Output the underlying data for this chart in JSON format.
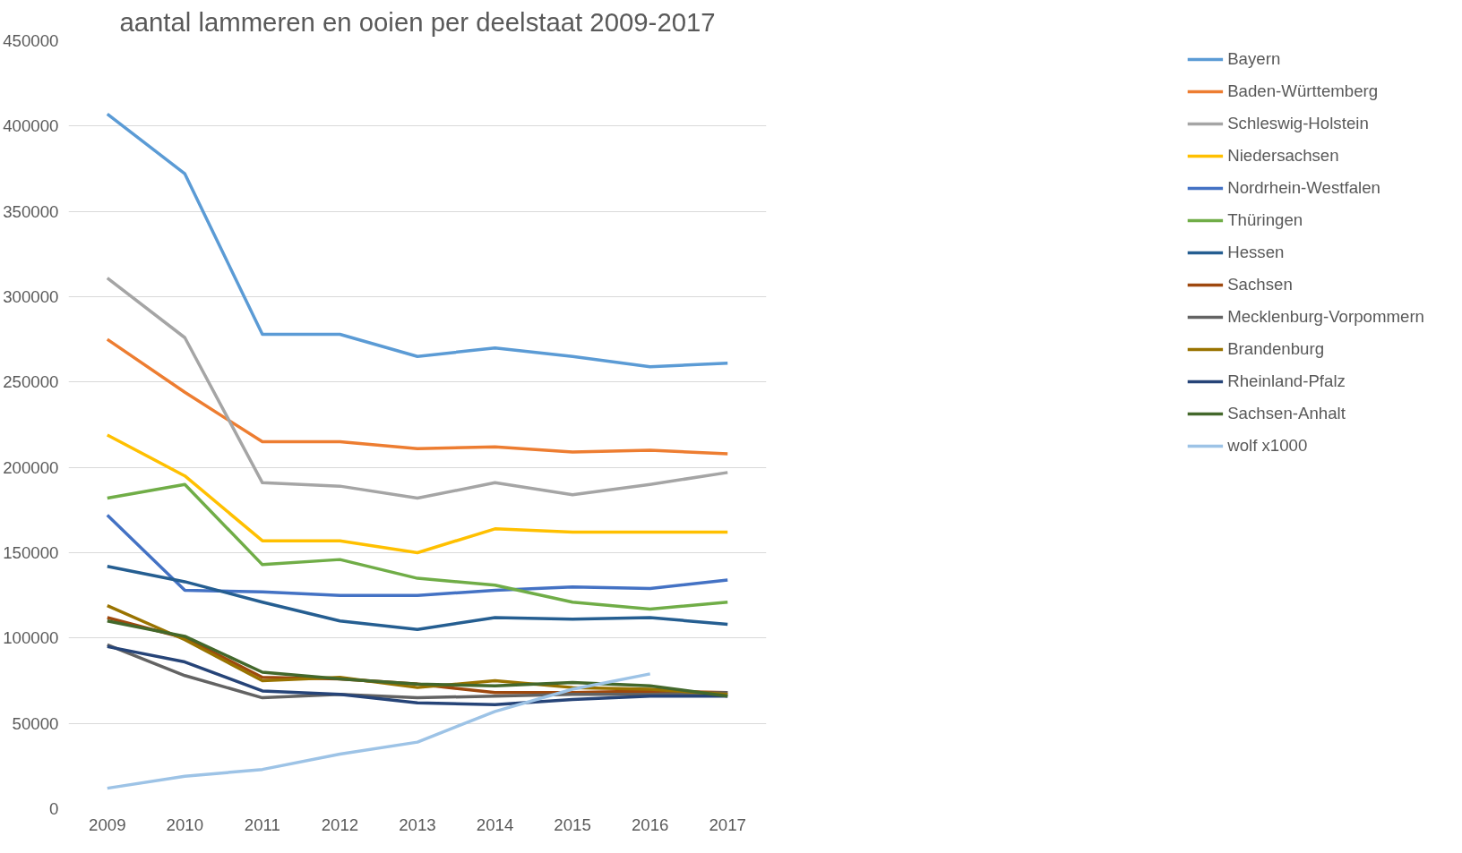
{
  "chart_data": {
    "type": "line",
    "title": "aantal lammeren en ooien per deelstaat 2009-2017",
    "categories": [
      "2009",
      "2010",
      "2011",
      "2012",
      "2013",
      "2014",
      "2015",
      "2016",
      "2017"
    ],
    "ylim": [
      0,
      450000
    ],
    "yticks": [
      0,
      50000,
      100000,
      150000,
      200000,
      250000,
      300000,
      350000,
      400000,
      450000
    ],
    "grid": "y",
    "legend": "right",
    "series": [
      {
        "name": "Bayern",
        "color": "#5b9bd5",
        "values": [
          407000,
          372000,
          278000,
          278000,
          265000,
          270000,
          265000,
          259000,
          261000
        ]
      },
      {
        "name": "Baden-Württemberg",
        "color": "#ed7d31",
        "values": [
          275000,
          244000,
          215000,
          215000,
          211000,
          212000,
          209000,
          210000,
          208000
        ]
      },
      {
        "name": "Schleswig-Holstein",
        "color": "#a5a5a5",
        "values": [
          311000,
          276000,
          191000,
          189000,
          182000,
          191000,
          184000,
          190000,
          197000
        ]
      },
      {
        "name": "Niedersachsen",
        "color": "#ffc000",
        "values": [
          219000,
          195000,
          157000,
          157000,
          150000,
          164000,
          162000,
          162000,
          162000
        ]
      },
      {
        "name": "Nordrhein-Westfalen",
        "color": "#4472c4",
        "values": [
          172000,
          128000,
          127000,
          125000,
          125000,
          128000,
          130000,
          129000,
          134000
        ]
      },
      {
        "name": "Thüringen",
        "color": "#70ad47",
        "values": [
          182000,
          190000,
          143000,
          146000,
          135000,
          131000,
          121000,
          117000,
          121000
        ]
      },
      {
        "name": "Hessen",
        "color": "#255e91",
        "values": [
          142000,
          133000,
          121000,
          110000,
          105000,
          112000,
          111000,
          112000,
          108000
        ]
      },
      {
        "name": "Sachsen",
        "color": "#9e480e",
        "values": [
          112000,
          100000,
          77000,
          76000,
          73000,
          68000,
          68000,
          69000,
          68000
        ]
      },
      {
        "name": "Mecklenburg-Vorpommern",
        "color": "#636363",
        "values": [
          96000,
          78000,
          65000,
          67000,
          65000,
          66000,
          67000,
          67000,
          68000
        ]
      },
      {
        "name": "Brandenburg",
        "color": "#997300",
        "values": [
          119000,
          99000,
          75000,
          77000,
          71000,
          75000,
          71000,
          70000,
          67000
        ]
      },
      {
        "name": "Rheinland-Pfalz",
        "color": "#264478",
        "values": [
          95000,
          86000,
          69000,
          67000,
          62000,
          61000,
          64000,
          66000,
          66000
        ]
      },
      {
        "name": "Sachsen-Anhalt",
        "color": "#43682b",
        "values": [
          110000,
          101000,
          80000,
          76000,
          73000,
          72000,
          74000,
          72000,
          66000
        ]
      },
      {
        "name": "wolf x1000",
        "color": "#9dc3e6",
        "values": [
          12000,
          19000,
          23000,
          32000,
          39000,
          57000,
          70000,
          79000,
          null
        ]
      }
    ]
  }
}
